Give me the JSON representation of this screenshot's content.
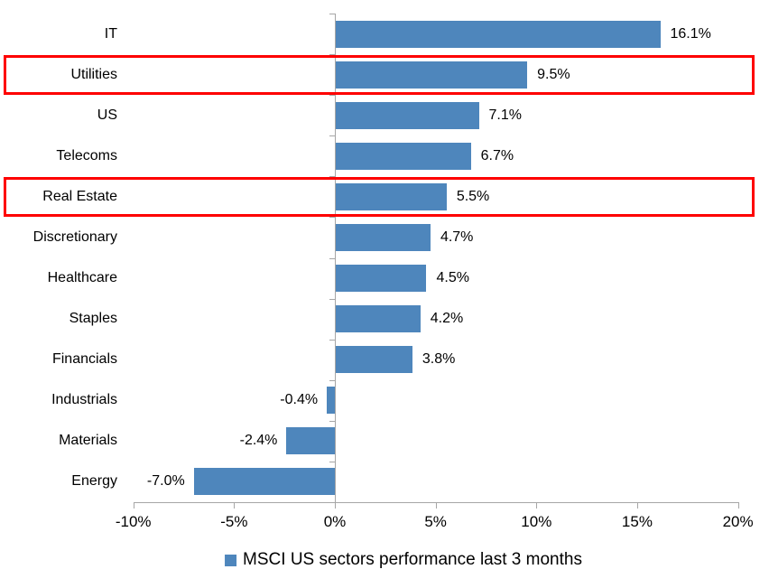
{
  "chart_data": {
    "type": "bar",
    "orientation": "horizontal",
    "title": "",
    "categories": [
      "IT",
      "Utilities",
      "US",
      "Telecoms",
      "Real Estate",
      "Discretionary",
      "Healthcare",
      "Staples",
      "Financials",
      "Industrials",
      "Materials",
      "Energy"
    ],
    "values": [
      16.1,
      9.5,
      7.1,
      6.7,
      5.5,
      4.7,
      4.5,
      4.2,
      3.8,
      -0.4,
      -2.4,
      -7.0
    ],
    "value_labels": [
      "16.1%",
      "9.5%",
      "7.1%",
      "6.7%",
      "5.5%",
      "4.7%",
      "4.5%",
      "4.2%",
      "3.8%",
      "-0.4%",
      "-2.4%",
      "-7.0%"
    ],
    "highlighted_categories": [
      "Utilities",
      "Real Estate"
    ],
    "xlim": [
      -10,
      20
    ],
    "x_tick_step": 5,
    "x_tick_labels": [
      "-10%",
      "-5%",
      "0%",
      "5%",
      "10%",
      "15%",
      "20%"
    ],
    "grid": false,
    "legend": {
      "label": "MSCI US sectors performance last 3 months",
      "position": "bottom"
    },
    "colors": {
      "bar": "#4e86bc",
      "axis": "#a6a6a6",
      "text": "#000000",
      "highlight_box": "#fe0000",
      "background": "#ffffff"
    }
  }
}
